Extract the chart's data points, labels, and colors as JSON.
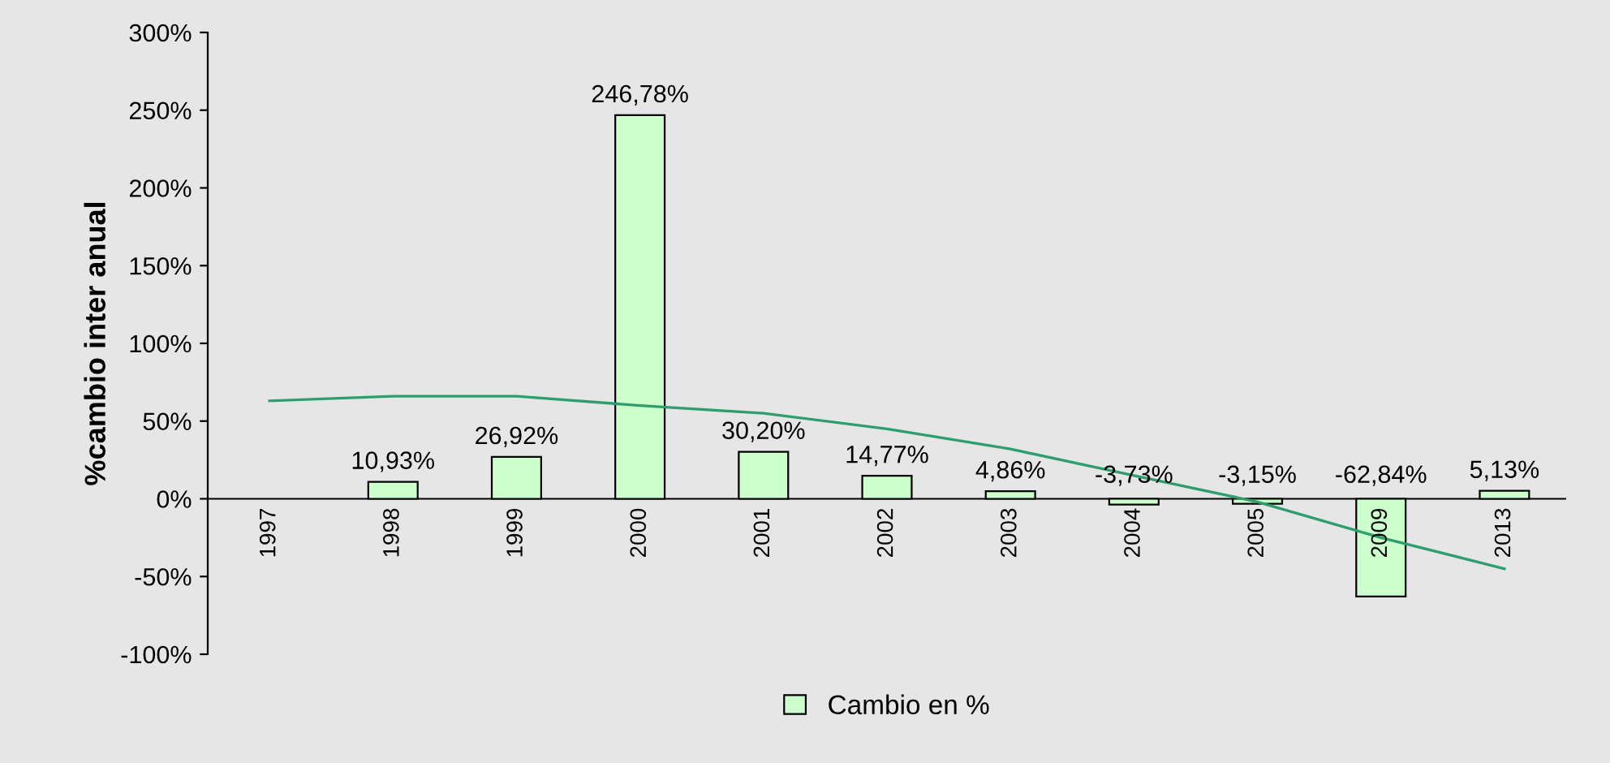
{
  "chart_data": {
    "type": "bar",
    "ylabel": "%cambio inter anual",
    "categories": [
      "1997",
      "1998",
      "1999",
      "2000",
      "2001",
      "2002",
      "2003",
      "2004",
      "2005",
      "2009",
      "2013"
    ],
    "series": [
      {
        "name": "Cambio en %",
        "color": "#ccffcc",
        "values": [
          null,
          10.93,
          26.92,
          246.78,
          30.2,
          14.77,
          4.86,
          -3.73,
          -3.15,
          -62.84,
          5.13
        ],
        "value_labels": [
          null,
          "10,93%",
          "26,92%",
          "246,78%",
          "30,20%",
          "14,77%",
          "4,86%",
          "-3,73%",
          "-3,15%",
          "-62,84%",
          "5,13%"
        ]
      },
      {
        "type": "line",
        "color": "#2e9e6e",
        "values": [
          63,
          66,
          66,
          60,
          55,
          45,
          32,
          15,
          -2,
          -25,
          -45
        ]
      }
    ],
    "ylim": [
      -100,
      300
    ],
    "yticks": [
      {
        "value": -100,
        "label": "-100%"
      },
      {
        "value": -50,
        "label": "-50%"
      },
      {
        "value": 0,
        "label": "0%"
      },
      {
        "value": 50,
        "label": "50%"
      },
      {
        "value": 100,
        "label": "100%"
      },
      {
        "value": 150,
        "label": "150%"
      },
      {
        "value": 200,
        "label": "200%"
      },
      {
        "value": 250,
        "label": "250%"
      },
      {
        "value": 300,
        "label": "300%"
      }
    ],
    "grid": false,
    "legend": "bottom"
  }
}
